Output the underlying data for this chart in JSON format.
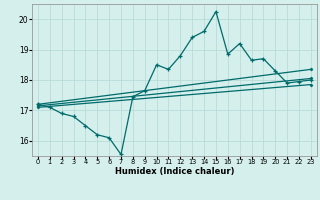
{
  "title": "",
  "xlabel": "Humidex (Indice chaleur)",
  "bg_color": "#d4efec",
  "line_color": "#006b6b",
  "grid_color": "#b8ddd9",
  "xlim": [
    -0.5,
    23.5
  ],
  "ylim": [
    15.5,
    20.5
  ],
  "yticks": [
    16,
    17,
    18,
    19,
    20
  ],
  "xticks": [
    0,
    1,
    2,
    3,
    4,
    5,
    6,
    7,
    8,
    9,
    10,
    11,
    12,
    13,
    14,
    15,
    16,
    17,
    18,
    19,
    20,
    21,
    22,
    23
  ],
  "line1_x": [
    0,
    1,
    2,
    3,
    4,
    5,
    6,
    7,
    8,
    9,
    10,
    11,
    12,
    13,
    14,
    15,
    16,
    17,
    18,
    19,
    20,
    21,
    22,
    23
  ],
  "line1_y": [
    17.2,
    17.1,
    16.9,
    16.8,
    16.5,
    16.2,
    16.1,
    15.55,
    17.45,
    17.65,
    18.5,
    18.35,
    18.8,
    19.4,
    19.6,
    20.25,
    18.85,
    19.2,
    18.65,
    18.7,
    18.3,
    17.9,
    17.95,
    18.0
  ],
  "line2_x": [
    0,
    23
  ],
  "line2_y": [
    17.2,
    18.35
  ],
  "line3_x": [
    0,
    23
  ],
  "line3_y": [
    17.15,
    18.05
  ],
  "line4_x": [
    0,
    23
  ],
  "line4_y": [
    17.1,
    17.85
  ]
}
